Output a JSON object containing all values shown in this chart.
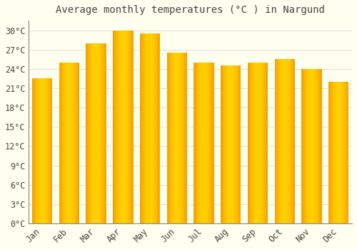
{
  "title": "Average monthly temperatures (°C ) in Nargund",
  "months": [
    "Jan",
    "Feb",
    "Mar",
    "Apr",
    "May",
    "Jun",
    "Jul",
    "Aug",
    "Sep",
    "Oct",
    "Nov",
    "Dec"
  ],
  "temperatures": [
    22.5,
    25.0,
    28.0,
    30.0,
    29.5,
    26.5,
    25.0,
    24.5,
    25.0,
    25.5,
    24.0,
    22.0
  ],
  "bar_color_center": "#FFD000",
  "bar_color_edge": "#F5A000",
  "background_color": "#FFFFF0",
  "grid_color": "#E0E0E0",
  "text_color": "#444444",
  "ylim": [
    0,
    31.5
  ],
  "ytick_step": 3,
  "title_fontsize": 10,
  "tick_fontsize": 8.5,
  "bar_width": 0.75
}
